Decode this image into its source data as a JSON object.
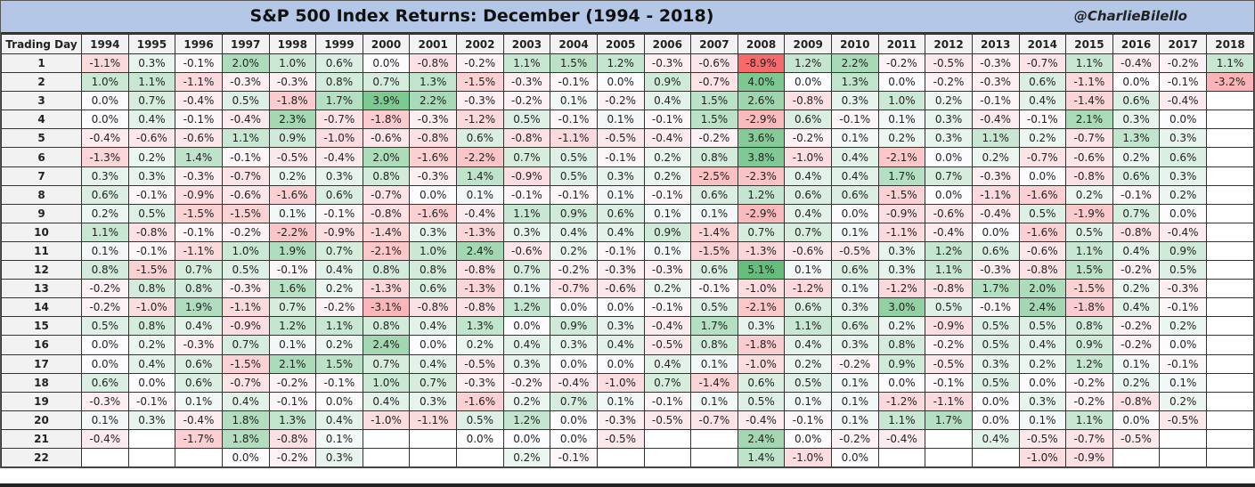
{
  "title": "S&P 500 Index Returns: December (1994 - 2018)",
  "handle": "@CharlieBilello",
  "colors": {
    "positive": "#63be7b",
    "negative": "#f8696b",
    "neutral": "#fcfcff",
    "title_bg": "#b4c7e7"
  },
  "chart_data": {
    "type": "heatmap",
    "title": "S&P 500 Index Returns: December (1994 - 2018)",
    "row_header": "Trading Day",
    "columns": [
      "1994",
      "1995",
      "1996",
      "1997",
      "1998",
      "1999",
      "2000",
      "2001",
      "2002",
      "2003",
      "2004",
      "2005",
      "2006",
      "2007",
      "2008",
      "2009",
      "2010",
      "2011",
      "2012",
      "2013",
      "2014",
      "2015",
      "2016",
      "2017",
      "2018"
    ],
    "rows": [
      {
        "day": "1",
        "values": [
          "-1.1%",
          "0.3%",
          "-0.1%",
          "2.0%",
          "1.0%",
          "0.6%",
          "0.0%",
          "-0.8%",
          "-0.2%",
          "1.1%",
          "1.5%",
          "1.2%",
          "-0.3%",
          "-0.6%",
          "-8.9%",
          "1.2%",
          "2.2%",
          "-0.2%",
          "-0.5%",
          "-0.3%",
          "-0.7%",
          "1.1%",
          "-0.4%",
          "-0.2%",
          "1.1%"
        ]
      },
      {
        "day": "2",
        "values": [
          "1.0%",
          "1.1%",
          "-1.1%",
          "-0.3%",
          "-0.3%",
          "0.8%",
          "0.7%",
          "1.3%",
          "-1.5%",
          "-0.3%",
          "-0.1%",
          "0.0%",
          "0.9%",
          "-0.7%",
          "4.0%",
          "0.0%",
          "1.3%",
          "0.0%",
          "-0.2%",
          "-0.3%",
          "0.6%",
          "-1.1%",
          "0.0%",
          "-0.1%",
          "-3.2%"
        ]
      },
      {
        "day": "3",
        "values": [
          "0.0%",
          "0.7%",
          "-0.4%",
          "0.5%",
          "-1.8%",
          "1.7%",
          "3.9%",
          "2.2%",
          "-0.3%",
          "-0.2%",
          "0.1%",
          "-0.2%",
          "0.4%",
          "1.5%",
          "2.6%",
          "-0.8%",
          "0.3%",
          "1.0%",
          "0.2%",
          "-0.1%",
          "0.4%",
          "-1.4%",
          "0.6%",
          "-0.4%",
          ""
        ]
      },
      {
        "day": "4",
        "values": [
          "0.0%",
          "0.4%",
          "-0.1%",
          "-0.4%",
          "2.3%",
          "-0.7%",
          "-1.8%",
          "-0.3%",
          "-1.2%",
          "0.5%",
          "-0.1%",
          "0.1%",
          "-0.1%",
          "1.5%",
          "-2.9%",
          "0.6%",
          "-0.1%",
          "0.1%",
          "0.3%",
          "-0.4%",
          "-0.1%",
          "2.1%",
          "0.3%",
          "0.0%",
          ""
        ]
      },
      {
        "day": "5",
        "values": [
          "-0.4%",
          "-0.6%",
          "-0.6%",
          "1.1%",
          "0.9%",
          "-1.0%",
          "-0.6%",
          "-0.8%",
          "0.6%",
          "-0.8%",
          "-1.1%",
          "-0.5%",
          "-0.4%",
          "-0.2%",
          "3.6%",
          "-0.2%",
          "0.1%",
          "0.2%",
          "0.3%",
          "1.1%",
          "0.2%",
          "-0.7%",
          "1.3%",
          "0.3%",
          ""
        ]
      },
      {
        "day": "6",
        "values": [
          "-1.3%",
          "0.2%",
          "1.4%",
          "-0.1%",
          "-0.5%",
          "-0.4%",
          "2.0%",
          "-1.6%",
          "-2.2%",
          "0.7%",
          "0.5%",
          "-0.1%",
          "0.2%",
          "0.8%",
          "3.8%",
          "-1.0%",
          "0.4%",
          "-2.1%",
          "0.0%",
          "0.2%",
          "-0.7%",
          "-0.6%",
          "0.2%",
          "0.6%",
          ""
        ]
      },
      {
        "day": "7",
        "values": [
          "0.3%",
          "0.3%",
          "-0.3%",
          "-0.7%",
          "0.2%",
          "0.3%",
          "0.8%",
          "-0.3%",
          "1.4%",
          "-0.9%",
          "0.5%",
          "0.3%",
          "0.2%",
          "-2.5%",
          "-2.3%",
          "0.4%",
          "0.4%",
          "1.7%",
          "0.7%",
          "-0.3%",
          "0.0%",
          "-0.8%",
          "0.6%",
          "0.3%",
          ""
        ]
      },
      {
        "day": "8",
        "values": [
          "0.6%",
          "-0.1%",
          "-0.9%",
          "-0.6%",
          "-1.6%",
          "0.6%",
          "-0.7%",
          "0.0%",
          "0.1%",
          "-0.1%",
          "-0.1%",
          "0.1%",
          "-0.1%",
          "0.6%",
          "1.2%",
          "0.6%",
          "0.6%",
          "-1.5%",
          "0.0%",
          "-1.1%",
          "-1.6%",
          "0.2%",
          "-0.1%",
          "0.2%",
          ""
        ]
      },
      {
        "day": "9",
        "values": [
          "0.2%",
          "0.5%",
          "-1.5%",
          "-1.5%",
          "0.1%",
          "-0.1%",
          "-0.8%",
          "-1.6%",
          "-0.4%",
          "1.1%",
          "0.9%",
          "0.6%",
          "0.1%",
          "0.1%",
          "-2.9%",
          "0.4%",
          "0.0%",
          "-0.9%",
          "-0.6%",
          "-0.4%",
          "0.5%",
          "-1.9%",
          "0.7%",
          "0.0%",
          ""
        ]
      },
      {
        "day": "10",
        "values": [
          "1.1%",
          "-0.8%",
          "-0.1%",
          "-0.2%",
          "-2.2%",
          "-0.9%",
          "-1.4%",
          "0.3%",
          "-1.3%",
          "0.3%",
          "0.4%",
          "0.4%",
          "0.9%",
          "-1.4%",
          "0.7%",
          "0.7%",
          "0.1%",
          "-1.1%",
          "-0.4%",
          "0.0%",
          "-1.6%",
          "0.5%",
          "-0.8%",
          "-0.4%",
          ""
        ]
      },
      {
        "day": "11",
        "values": [
          "0.1%",
          "-0.1%",
          "-1.1%",
          "1.0%",
          "1.9%",
          "0.7%",
          "-2.1%",
          "1.0%",
          "2.4%",
          "-0.6%",
          "0.2%",
          "-0.1%",
          "0.1%",
          "-1.5%",
          "-1.3%",
          "-0.6%",
          "-0.5%",
          "0.3%",
          "1.2%",
          "0.6%",
          "-0.6%",
          "1.1%",
          "0.4%",
          "0.9%",
          ""
        ]
      },
      {
        "day": "12",
        "values": [
          "0.8%",
          "-1.5%",
          "0.7%",
          "0.5%",
          "-0.1%",
          "0.4%",
          "0.8%",
          "0.8%",
          "-0.8%",
          "0.7%",
          "-0.2%",
          "-0.3%",
          "-0.3%",
          "0.6%",
          "5.1%",
          "0.1%",
          "0.6%",
          "0.3%",
          "1.1%",
          "-0.3%",
          "-0.8%",
          "1.5%",
          "-0.2%",
          "0.5%",
          ""
        ]
      },
      {
        "day": "13",
        "values": [
          "-0.2%",
          "0.8%",
          "0.8%",
          "-0.3%",
          "1.6%",
          "0.2%",
          "-1.3%",
          "0.6%",
          "-1.3%",
          "0.1%",
          "-0.7%",
          "-0.6%",
          "0.2%",
          "-0.1%",
          "-1.0%",
          "-1.2%",
          "0.1%",
          "-1.2%",
          "-0.8%",
          "1.7%",
          "2.0%",
          "-1.5%",
          "0.2%",
          "-0.3%",
          ""
        ]
      },
      {
        "day": "14",
        "values": [
          "-0.2%",
          "-1.0%",
          "1.9%",
          "-1.1%",
          "0.7%",
          "-0.2%",
          "-3.1%",
          "-0.8%",
          "-0.8%",
          "1.2%",
          "0.0%",
          "0.0%",
          "-0.1%",
          "0.5%",
          "-2.1%",
          "0.6%",
          "0.3%",
          "3.0%",
          "0.5%",
          "-0.1%",
          "2.4%",
          "-1.8%",
          "0.4%",
          "-0.1%",
          ""
        ]
      },
      {
        "day": "15",
        "values": [
          "0.5%",
          "0.8%",
          "0.4%",
          "-0.9%",
          "1.2%",
          "1.1%",
          "0.8%",
          "0.4%",
          "1.3%",
          "0.0%",
          "0.9%",
          "0.3%",
          "-0.4%",
          "1.7%",
          "0.3%",
          "1.1%",
          "0.6%",
          "0.2%",
          "-0.9%",
          "0.5%",
          "0.5%",
          "0.8%",
          "-0.2%",
          "0.2%",
          ""
        ]
      },
      {
        "day": "16",
        "values": [
          "0.0%",
          "0.2%",
          "-0.3%",
          "0.7%",
          "0.1%",
          "0.2%",
          "2.4%",
          "0.0%",
          "0.2%",
          "0.4%",
          "0.3%",
          "0.4%",
          "-0.5%",
          "0.8%",
          "-1.8%",
          "0.4%",
          "0.3%",
          "0.8%",
          "-0.2%",
          "0.5%",
          "0.4%",
          "0.9%",
          "-0.2%",
          "0.0%",
          ""
        ]
      },
      {
        "day": "17",
        "values": [
          "0.0%",
          "0.4%",
          "0.6%",
          "-1.5%",
          "2.1%",
          "1.5%",
          "0.7%",
          "0.4%",
          "-0.5%",
          "0.3%",
          "0.0%",
          "0.0%",
          "0.4%",
          "0.1%",
          "-1.0%",
          "0.2%",
          "-0.2%",
          "0.9%",
          "-0.5%",
          "0.3%",
          "0.2%",
          "1.2%",
          "0.1%",
          "-0.1%",
          ""
        ]
      },
      {
        "day": "18",
        "values": [
          "0.6%",
          "0.0%",
          "0.6%",
          "-0.7%",
          "-0.2%",
          "-0.1%",
          "1.0%",
          "0.7%",
          "-0.3%",
          "-0.2%",
          "-0.4%",
          "-1.0%",
          "0.7%",
          "-1.4%",
          "0.6%",
          "0.5%",
          "0.1%",
          "0.0%",
          "-0.1%",
          "0.5%",
          "0.0%",
          "-0.2%",
          "0.2%",
          "0.1%",
          ""
        ]
      },
      {
        "day": "19",
        "values": [
          "-0.3%",
          "-0.1%",
          "0.1%",
          "0.4%",
          "-0.1%",
          "0.0%",
          "0.4%",
          "0.3%",
          "-1.6%",
          "0.2%",
          "0.7%",
          "0.1%",
          "-0.1%",
          "0.1%",
          "0.5%",
          "0.1%",
          "0.1%",
          "-1.2%",
          "-1.1%",
          "0.0%",
          "0.3%",
          "-0.2%",
          "-0.8%",
          "0.2%",
          ""
        ]
      },
      {
        "day": "20",
        "values": [
          "0.1%",
          "0.3%",
          "-0.4%",
          "1.8%",
          "1.3%",
          "0.4%",
          "-1.0%",
          "-1.1%",
          "0.5%",
          "1.2%",
          "0.0%",
          "-0.3%",
          "-0.5%",
          "-0.7%",
          "-0.4%",
          "-0.1%",
          "0.1%",
          "1.1%",
          "1.7%",
          "0.0%",
          "0.1%",
          "1.1%",
          "0.0%",
          "-0.5%",
          ""
        ]
      },
      {
        "day": "21",
        "values": [
          "-0.4%",
          "",
          "-1.7%",
          "1.8%",
          "-0.8%",
          "0.1%",
          "",
          "",
          "0.0%",
          "0.0%",
          "0.0%",
          "-0.5%",
          "",
          "",
          "2.4%",
          "0.0%",
          "-0.2%",
          "-0.4%",
          "",
          "0.4%",
          "-0.5%",
          "-0.7%",
          "-0.5%",
          "",
          ""
        ]
      },
      {
        "day": "22",
        "values": [
          "",
          "",
          "",
          "0.0%",
          "-0.2%",
          "0.3%",
          "",
          "",
          "",
          "0.2%",
          "-0.1%",
          "",
          "",
          "",
          "1.4%",
          "-1.0%",
          "0.0%",
          "",
          "",
          "",
          "-1.0%",
          "-0.9%",
          "",
          "",
          ""
        ]
      }
    ]
  }
}
